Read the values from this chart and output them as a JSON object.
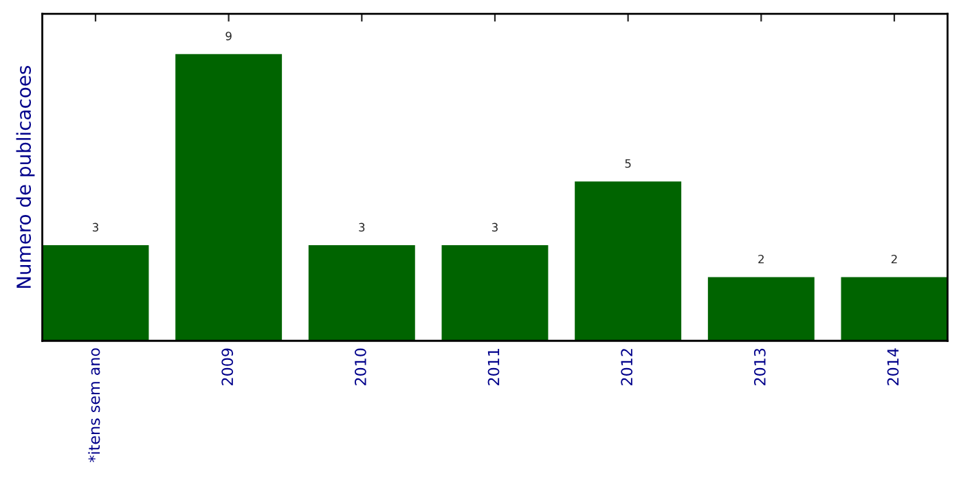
{
  "chart_data": {
    "type": "bar",
    "ylabel": "Numero de publicacoes",
    "categories": [
      "*itens sem ano",
      "2009",
      "2010",
      "2011",
      "2012",
      "2013",
      "2014"
    ],
    "values": [
      3,
      9,
      3,
      3,
      5,
      2,
      2
    ],
    "color": "#006400",
    "data_labels": true,
    "tick_labels": "x",
    "grid": false
  }
}
